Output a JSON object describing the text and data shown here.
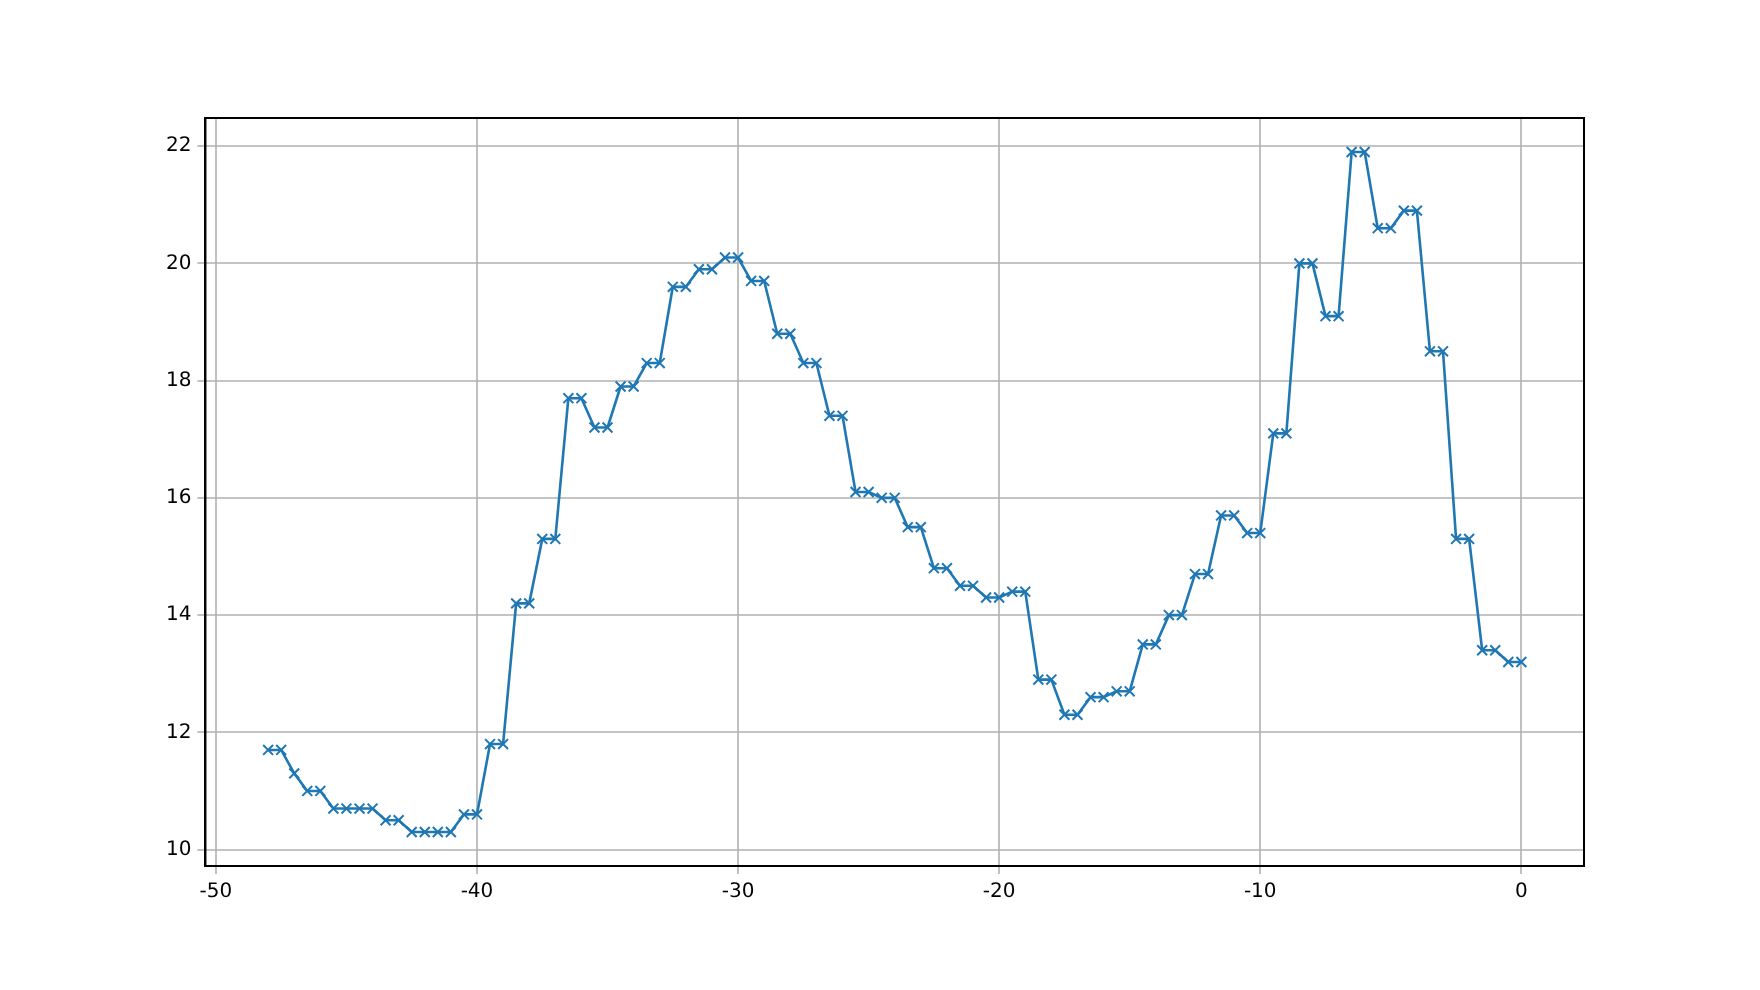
{
  "chart_data": {
    "type": "line",
    "x": [
      -48,
      -47.5,
      -47,
      -46.5,
      -46,
      -45.5,
      -45,
      -44.5,
      -44,
      -43.5,
      -43,
      -42.5,
      -42,
      -41.5,
      -41,
      -40.5,
      -40,
      -39.5,
      -39,
      -38.5,
      -38,
      -37.5,
      -37,
      -36.5,
      -36,
      -35.5,
      -35,
      -34.5,
      -34,
      -33.5,
      -33,
      -32.5,
      -32,
      -31.5,
      -31,
      -30.5,
      -30,
      -29.5,
      -29,
      -28.5,
      -28,
      -27.5,
      -27,
      -26.5,
      -26,
      -25.5,
      -25,
      -24.5,
      -24,
      -23.5,
      -23,
      -22.5,
      -22,
      -21.5,
      -21,
      -20.5,
      -20,
      -19.5,
      -19,
      -18.5,
      -18,
      -17.5,
      -17,
      -16.5,
      -16,
      -15.5,
      -15,
      -14.5,
      -14,
      -13.5,
      -13,
      -12.5,
      -12,
      -11.5,
      -11,
      -10.5,
      -10,
      -9.5,
      -9,
      -8.5,
      -8,
      -7.5,
      -7,
      -6.5,
      -6,
      -5.5,
      -5,
      -4.5,
      -4,
      -3.5,
      -3,
      -2.5,
      -2,
      -1.5,
      -1,
      -0.5,
      0
    ],
    "series": [
      {
        "color": "#1f77b4",
        "values": [
          11.7,
          11.7,
          11.3,
          11.0,
          11.0,
          10.7,
          10.7,
          10.7,
          10.7,
          10.5,
          10.5,
          10.3,
          10.3,
          10.3,
          10.3,
          10.6,
          10.6,
          11.8,
          11.8,
          14.2,
          14.2,
          15.3,
          15.3,
          17.7,
          17.7,
          17.2,
          17.2,
          17.9,
          17.9,
          18.3,
          18.3,
          19.6,
          19.6,
          19.9,
          19.9,
          20.1,
          20.1,
          19.7,
          19.7,
          18.8,
          18.8,
          18.3,
          18.3,
          17.4,
          17.4,
          16.1,
          16.1,
          16.0,
          16.0,
          15.5,
          15.5,
          14.8,
          14.8,
          14.5,
          14.5,
          14.3,
          14.3,
          14.4,
          14.4,
          12.9,
          12.9,
          12.3,
          12.3,
          12.6,
          12.6,
          12.7,
          12.7,
          13.5,
          13.5,
          14.0,
          14.0,
          14.7,
          14.7,
          15.7,
          15.7,
          15.4,
          15.4,
          17.1,
          17.1,
          20.0,
          20.0,
          19.1,
          19.1,
          21.9,
          21.9,
          20.6,
          20.6,
          20.9,
          20.9,
          18.5,
          18.5,
          15.3,
          15.3,
          13.4,
          13.4,
          13.2,
          13.2
        ]
      }
    ],
    "xlim": [
      -50.4,
      2.4
    ],
    "xticks": [
      -50,
      -40,
      -30,
      -20,
      -10,
      0
    ],
    "ylim": [
      9.72,
      22.48
    ],
    "yticks": [
      10,
      12,
      14,
      16,
      18,
      20,
      22
    ],
    "grid": true,
    "marker": "cross",
    "line_style": "solid"
  }
}
